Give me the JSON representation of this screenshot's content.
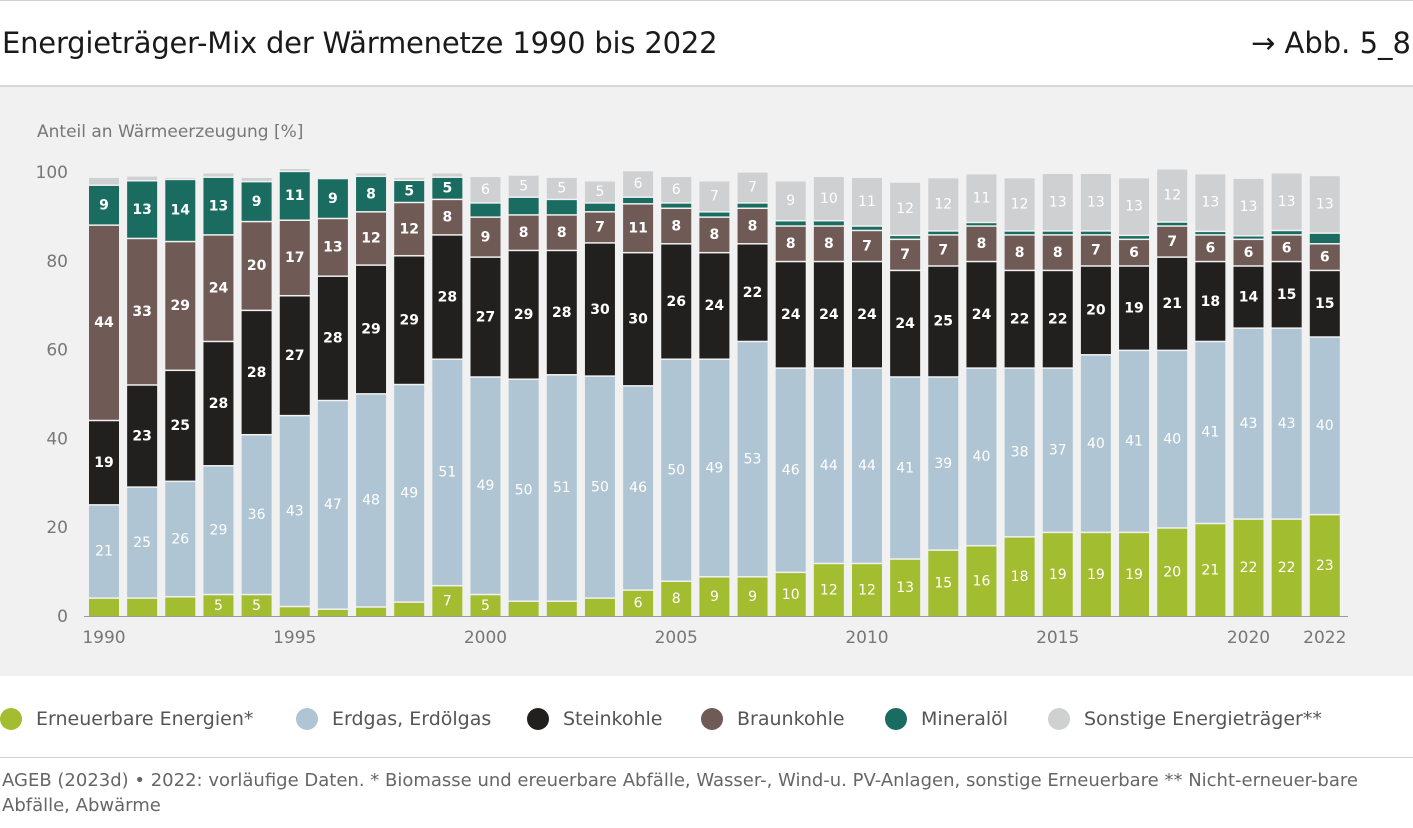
{
  "header": {
    "title": "Energieträger-Mix der Wärmenetze 1990 bis 2022",
    "figure_ref": "→ Abb. 5_8"
  },
  "footnote": "AGEB (2023d) • 2022: vorläufige Daten. * Biomasse und ereuerbare Abfälle, Wasser-, Wind-u. PV-Anlagen, sonstige Erneuerbare ** Nicht-erneuer-bare Abfälle, Abwärme",
  "colors": {
    "erneuerbare": "#a3bd31",
    "erdgas": "#afc5d4",
    "steinkohle": "#22201e",
    "braunkohle": "#705a55",
    "mineraloel": "#196c5f",
    "sonstige": "#cfd0d2",
    "panel": "#f1f1f1"
  },
  "legend": [
    {
      "label": "Erneuerbare Energien*",
      "color": "#a3bd31"
    },
    {
      "label": "Erdgas, Erdölgas",
      "color": "#afc5d4"
    },
    {
      "label": "Steinkohle",
      "color": "#22201e"
    },
    {
      "label": "Braunkohle",
      "color": "#705a55"
    },
    {
      "label": "Mineralöl",
      "color": "#196c5f"
    },
    {
      "label": "Sonstige Energieträger**",
      "color": "#cfd0d2"
    }
  ],
  "chart_data": {
    "type": "bar",
    "stacked": true,
    "ylabel": "Anteil an Wärmeerzeugung [%]",
    "ylim": [
      0,
      100
    ],
    "yticks": [
      0,
      20,
      40,
      60,
      80,
      100
    ],
    "xtick_labels": [
      "1990",
      "1995",
      "2000",
      "2005",
      "2010",
      "2015",
      "2020",
      "2022"
    ],
    "grid": false,
    "legend_position": "bottom",
    "categories": [
      "1990",
      "1991",
      "1992",
      "1993",
      "1994",
      "1995",
      "1996",
      "1997",
      "1998",
      "1999",
      "2000",
      "2001",
      "2002",
      "2003",
      "2004",
      "2005",
      "2006",
      "2007",
      "2008",
      "2009",
      "2010",
      "2011",
      "2012",
      "2013",
      "2014",
      "2015",
      "2016",
      "2017",
      "2018",
      "2019",
      "2020",
      "2021",
      "2022"
    ],
    "series": [
      {
        "name": "Erneuerbare Energien*",
        "values": [
          4.2,
          4.2,
          4.5,
          5,
          5,
          2.3,
          1.7,
          2.2,
          3.3,
          7,
          5,
          3.5,
          3.5,
          4.2,
          6,
          8,
          9,
          9,
          10,
          12,
          12,
          13,
          15,
          16,
          18,
          19,
          19,
          19,
          20,
          21,
          22,
          22,
          23
        ],
        "labels": [
          "",
          "",
          "",
          "5",
          "5",
          "",
          "",
          "",
          "",
          "7",
          "5",
          "",
          "",
          "",
          "6",
          "8",
          "9",
          "9",
          "10",
          "12",
          "12",
          "13",
          "15",
          "16",
          "18",
          "19",
          "19",
          "19",
          "20",
          "21",
          "22",
          "22",
          "23"
        ]
      },
      {
        "name": "Erdgas, Erdölgas",
        "values": [
          21,
          25,
          26,
          29,
          36,
          43,
          47,
          48,
          49,
          51,
          49,
          50,
          51,
          50,
          46,
          50,
          49,
          53,
          46,
          44,
          44,
          41,
          39,
          40,
          38,
          37,
          40,
          41,
          40,
          41,
          43,
          43,
          40
        ],
        "labels": [
          "21",
          "25",
          "26",
          "29",
          "36",
          "43",
          "47",
          "48",
          "49",
          "51",
          "49",
          "50",
          "51",
          "50",
          "46",
          "50",
          "49",
          "53",
          "46",
          "44",
          "44",
          "41",
          "39",
          "40",
          "38",
          "37",
          "40",
          "41",
          "40",
          "41",
          "43",
          "43",
          "40"
        ]
      },
      {
        "name": "Steinkohle",
        "values": [
          19,
          23,
          25,
          28,
          28,
          27,
          28,
          29,
          29,
          28,
          27,
          29,
          28,
          30,
          30,
          26,
          24,
          22,
          24,
          24,
          24,
          24,
          25,
          24,
          22,
          22,
          20,
          19,
          21,
          18,
          14,
          15,
          15
        ],
        "labels": [
          "19",
          "23",
          "25",
          "28",
          "28",
          "27",
          "28",
          "29",
          "29",
          "28",
          "27",
          "29",
          "28",
          "30",
          "30",
          "26",
          "24",
          "22",
          "24",
          "24",
          "24",
          "24",
          "25",
          "24",
          "22",
          "22",
          "20",
          "19",
          "21",
          "18",
          "14",
          "15",
          "15"
        ]
      },
      {
        "name": "Braunkohle",
        "values": [
          44,
          33,
          29,
          24,
          20,
          17,
          13,
          12,
          12,
          8,
          9,
          8,
          8,
          7,
          11,
          8,
          8,
          8,
          8,
          8,
          7,
          7,
          7,
          8,
          8,
          8,
          7,
          6,
          7,
          6,
          6,
          6,
          6
        ],
        "labels": [
          "44",
          "33",
          "29",
          "24",
          "20",
          "17",
          "13",
          "12",
          "12",
          "8",
          "9",
          "8",
          "8",
          "7",
          "11",
          "8",
          "8",
          "8",
          "8",
          "8",
          "7",
          "7",
          "7",
          "8",
          "8",
          "8",
          "7",
          "6",
          "7",
          "6",
          "6",
          "6",
          "6"
        ]
      },
      {
        "name": "Mineralöl",
        "values": [
          9,
          13,
          14,
          13,
          9,
          11,
          9,
          8,
          5,
          5,
          3.2,
          4,
          3.5,
          2,
          1.5,
          1.2,
          1.2,
          1.2,
          1.2,
          1.2,
          1,
          0.9,
          0.9,
          0.8,
          0.9,
          0.9,
          0.9,
          0.9,
          0.9,
          0.8,
          0.8,
          1,
          2.4
        ],
        "labels": [
          "9",
          "13",
          "14",
          "13",
          "9",
          "11",
          "9",
          "8",
          "5",
          "5",
          "",
          "",
          "",
          "",
          "",
          "",
          "",
          "",
          "",
          "",
          "",
          "",
          "",
          "",
          "",
          "",
          "",
          "",
          "",
          "",
          "",
          "",
          ""
        ]
      },
      {
        "name": "Sonstige Energieträger**",
        "values": [
          1.8,
          1.1,
          0.5,
          1,
          1,
          0.7,
          0.3,
          0.8,
          0.7,
          1,
          6,
          5,
          5,
          5,
          6,
          6,
          7,
          7,
          9,
          10,
          11,
          12,
          12,
          11,
          12,
          13,
          13,
          13,
          12,
          13,
          13,
          13,
          13
        ],
        "labels": [
          "",
          "",
          "",
          "",
          "",
          "",
          "",
          "",
          "",
          "",
          "6",
          "5",
          "5",
          "5",
          "6",
          "6",
          "7",
          "7",
          "9",
          "10",
          "11",
          "12",
          "12",
          "11",
          "12",
          "13",
          "13",
          "13",
          "12",
          "13",
          "13",
          "13",
          "13"
        ]
      }
    ]
  }
}
